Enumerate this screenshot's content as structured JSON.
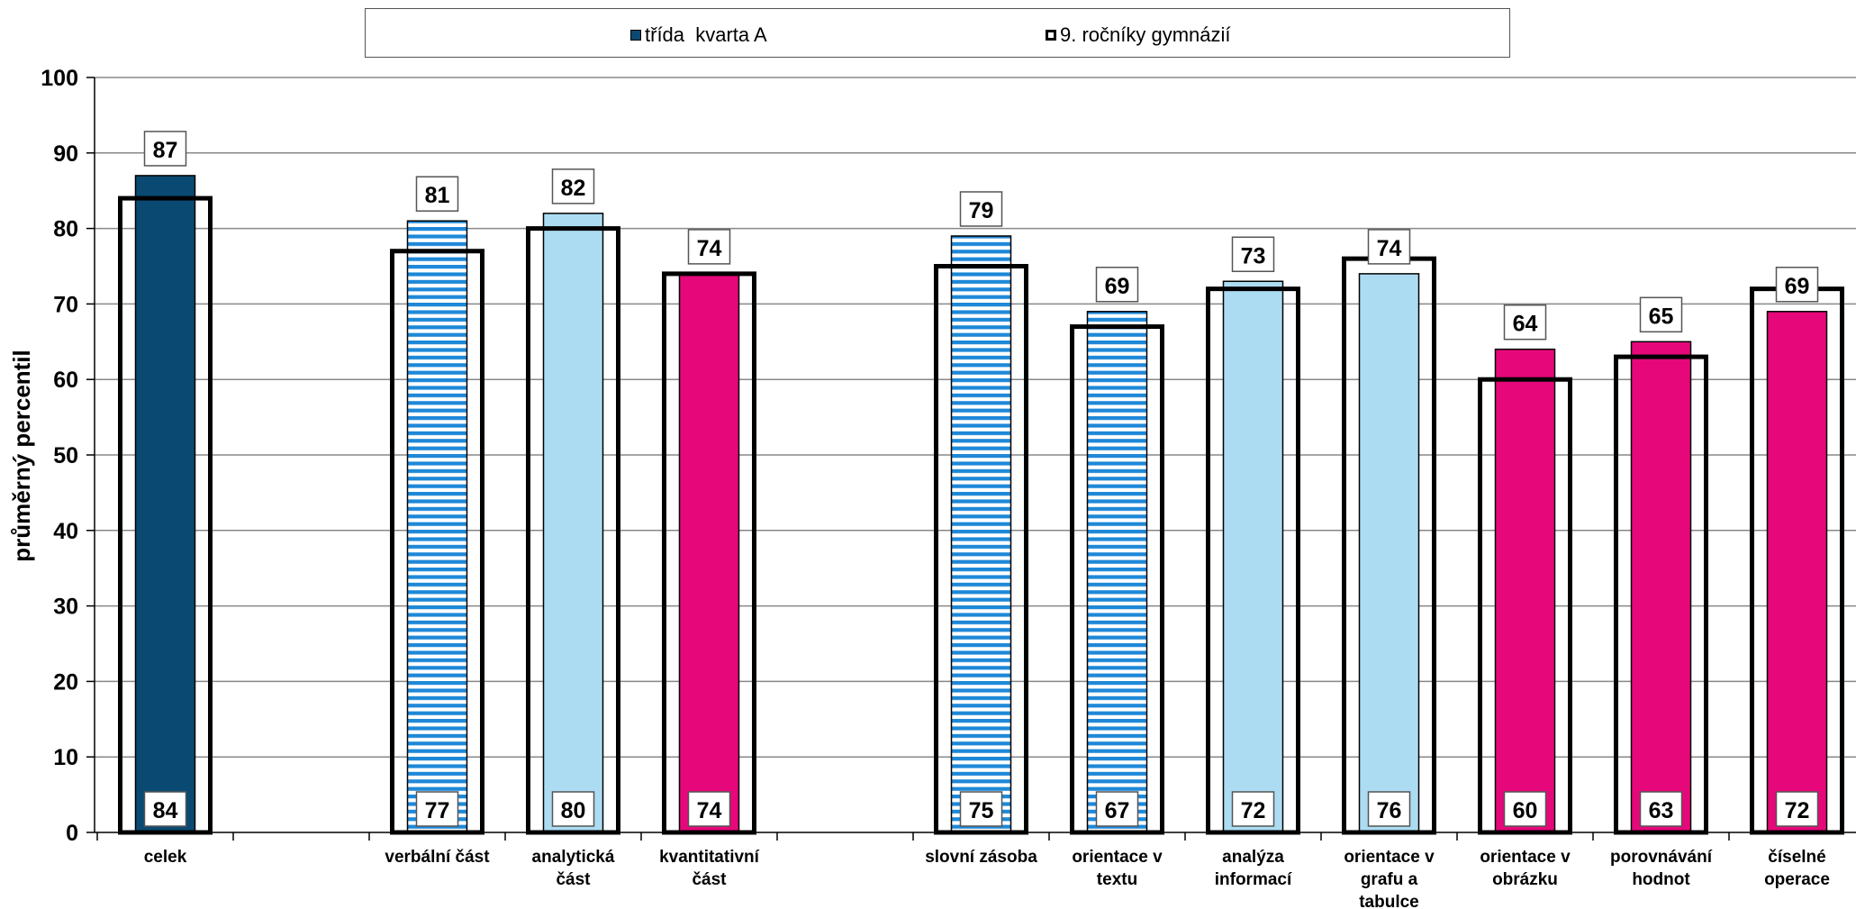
{
  "legend": {
    "class_label": "třída  kvarta A",
    "national_label": "9. ročníky gymnázií"
  },
  "colors": {
    "dark_blue": "#0a4a72",
    "light_blue": "#acdcf2",
    "stripe_blue": "#1e88d8",
    "magenta": "#e6087a"
  },
  "chart_data": {
    "type": "bar",
    "ylabel": "průměrný percentil",
    "xlabel": "",
    "ylim": [
      0,
      100
    ],
    "yticks": [
      0,
      10,
      20,
      30,
      40,
      50,
      60,
      70,
      80,
      90,
      100
    ],
    "grid": true,
    "legend_position": "top",
    "categories": [
      "celek",
      "",
      "verbální část",
      "analytická část",
      "kvantitativní část",
      "",
      "slovní zásoba",
      "orientace v textu",
      "analýza informací",
      "orientace v grafu a tabulce",
      "orientace v obrázku",
      "porovnávání hodnot",
      "číselné operace"
    ],
    "category_label_lines": [
      [
        "celek"
      ],
      [],
      [
        "verbální část"
      ],
      [
        "analytická",
        "část"
      ],
      [
        "kvantitativní",
        "část"
      ],
      [],
      [
        "slovní zásoba"
      ],
      [
        "orientace v",
        "textu"
      ],
      [
        "analýza",
        "informací"
      ],
      [
        "orientace v",
        "grafu a",
        "tabulce"
      ],
      [
        "orientace v",
        "obrázku"
      ],
      [
        "porovnávání",
        "hodnot"
      ],
      [
        "číselné",
        "operace"
      ]
    ],
    "fills": [
      "dark",
      null,
      "striped",
      "light",
      "magenta",
      null,
      "striped",
      "striped",
      "light",
      "light",
      "magenta",
      "magenta",
      "magenta"
    ],
    "series": [
      {
        "name": "třída  kvarta A",
        "values": [
          87,
          null,
          81,
          82,
          74,
          null,
          79,
          69,
          73,
          74,
          64,
          65,
          69
        ]
      },
      {
        "name": "9. ročníky gymnázií",
        "values": [
          84,
          null,
          77,
          80,
          74,
          null,
          75,
          67,
          72,
          76,
          60,
          63,
          72
        ]
      }
    ]
  }
}
